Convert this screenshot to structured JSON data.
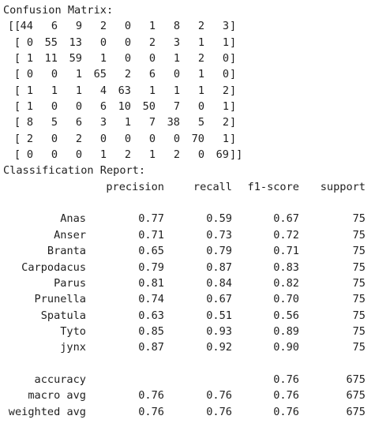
{
  "confusion_title": "Confusion Matrix:",
  "matrix": [
    [
      44,
      6,
      9,
      2,
      0,
      1,
      8,
      2,
      3
    ],
    [
      0,
      55,
      13,
      0,
      0,
      2,
      3,
      1,
      1
    ],
    [
      1,
      11,
      59,
      1,
      0,
      0,
      1,
      2,
      0
    ],
    [
      0,
      0,
      1,
      65,
      2,
      6,
      0,
      1,
      0
    ],
    [
      1,
      1,
      1,
      4,
      63,
      1,
      1,
      1,
      2
    ],
    [
      1,
      0,
      0,
      6,
      10,
      50,
      7,
      0,
      1
    ],
    [
      8,
      5,
      6,
      3,
      1,
      7,
      38,
      5,
      2
    ],
    [
      2,
      0,
      2,
      0,
      0,
      0,
      0,
      70,
      1
    ],
    [
      0,
      0,
      0,
      1,
      2,
      1,
      2,
      0,
      69
    ]
  ],
  "report_title": "Classification Report:",
  "report_headers": [
    "precision",
    "recall",
    "f1-score",
    "support"
  ],
  "report_rows": [
    {
      "label": "Anas",
      "precision": "0.77",
      "recall": "0.59",
      "f1": "0.67",
      "support": "75"
    },
    {
      "label": "Anser",
      "precision": "0.71",
      "recall": "0.73",
      "f1": "0.72",
      "support": "75"
    },
    {
      "label": "Branta",
      "precision": "0.65",
      "recall": "0.79",
      "f1": "0.71",
      "support": "75"
    },
    {
      "label": "Carpodacus",
      "precision": "0.79",
      "recall": "0.87",
      "f1": "0.83",
      "support": "75"
    },
    {
      "label": "Parus",
      "precision": "0.81",
      "recall": "0.84",
      "f1": "0.82",
      "support": "75"
    },
    {
      "label": "Prunella",
      "precision": "0.74",
      "recall": "0.67",
      "f1": "0.70",
      "support": "75"
    },
    {
      "label": "Spatula",
      "precision": "0.63",
      "recall": "0.51",
      "f1": "0.56",
      "support": "75"
    },
    {
      "label": "Tyto",
      "precision": "0.85",
      "recall": "0.93",
      "f1": "0.89",
      "support": "75"
    },
    {
      "label": "jynx",
      "precision": "0.87",
      "recall": "0.92",
      "f1": "0.90",
      "support": "75"
    }
  ],
  "summary_rows": [
    {
      "label": "accuracy",
      "precision": "",
      "recall": "",
      "f1": "0.76",
      "support": "675"
    },
    {
      "label": "macro avg",
      "precision": "0.76",
      "recall": "0.76",
      "f1": "0.76",
      "support": "675"
    },
    {
      "label": "weighted avg",
      "precision": "0.76",
      "recall": "0.76",
      "f1": "0.76",
      "support": "675"
    }
  ]
}
